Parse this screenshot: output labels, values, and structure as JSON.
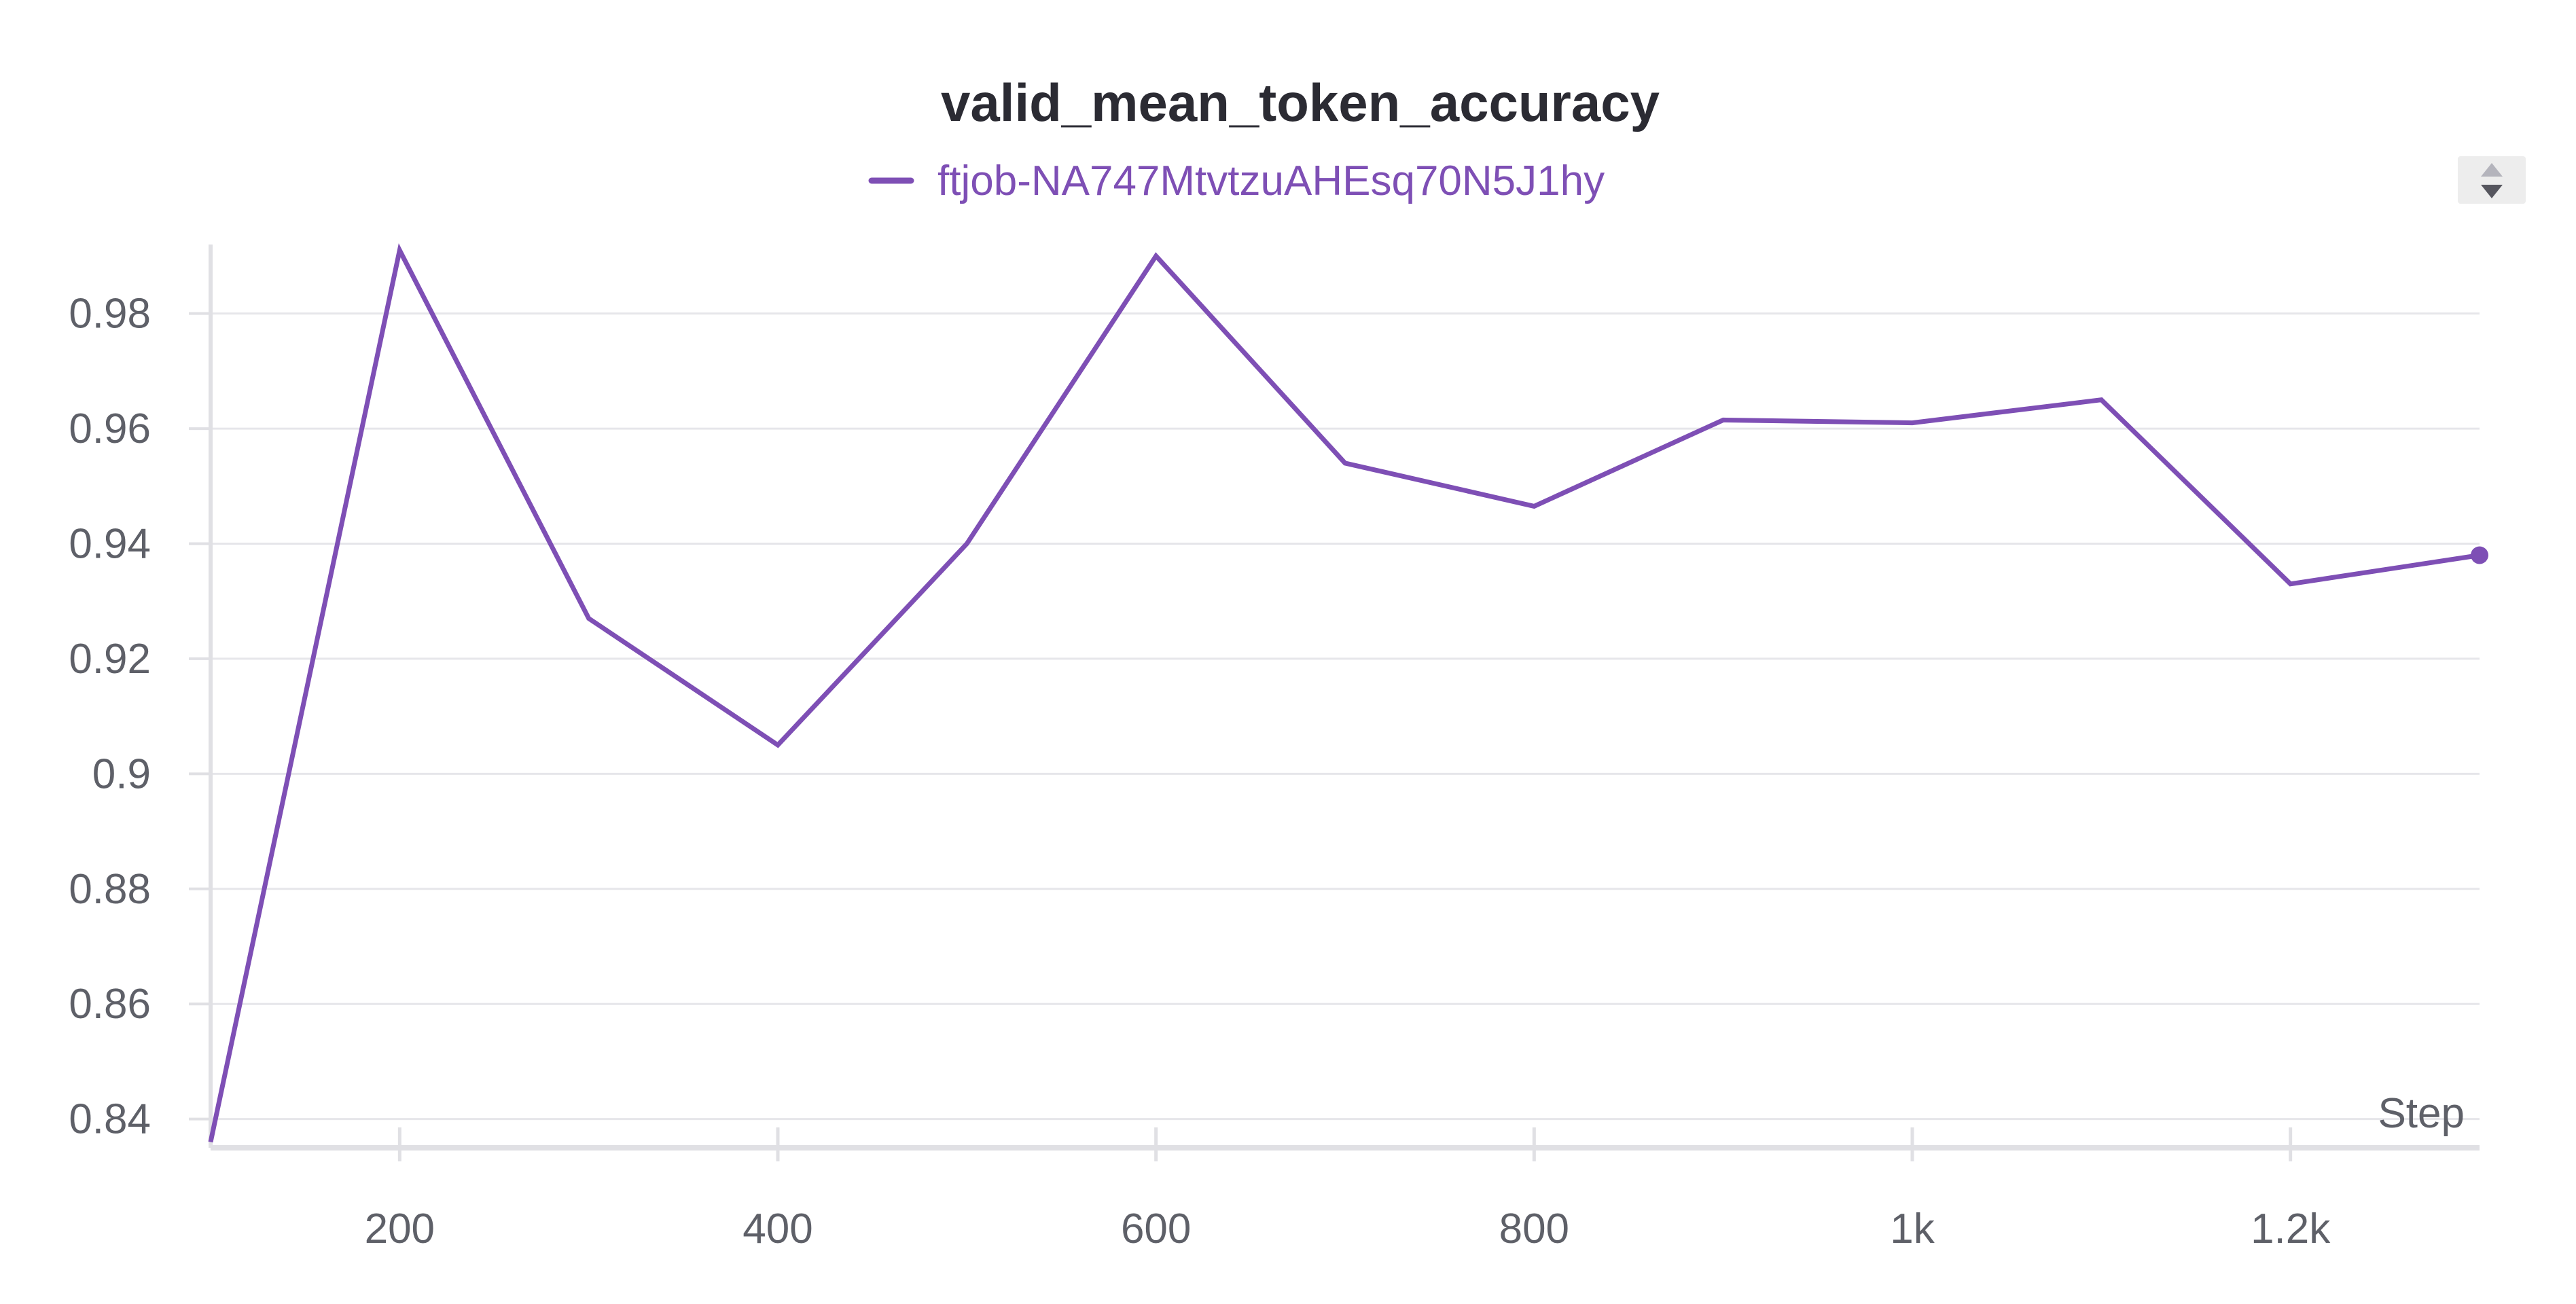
{
  "chart_data": {
    "type": "line",
    "title": "valid_mean_token_accuracy",
    "xlabel": "Step",
    "ylabel": "",
    "xlim": [
      100,
      1300
    ],
    "ylim": [
      0.835,
      0.992
    ],
    "x_ticks": [
      200,
      400,
      600,
      800,
      1000,
      1200
    ],
    "x_tick_labels": [
      "200",
      "400",
      "600",
      "800",
      "1k",
      "1.2k"
    ],
    "y_ticks": [
      0.84,
      0.86,
      0.88,
      0.9,
      0.92,
      0.94,
      0.96,
      0.98
    ],
    "y_tick_labels": [
      "0.84",
      "0.86",
      "0.88",
      "0.9",
      "0.92",
      "0.94",
      "0.96",
      "0.98"
    ],
    "grid": true,
    "legend_position": "top-center",
    "series": [
      {
        "name": "ftjob-NA747MtvtzuAHEsq70N5J1hy",
        "color": "#7e4fb5",
        "x": [
          100,
          200,
          300,
          400,
          500,
          600,
          700,
          800,
          900,
          1000,
          1100,
          1200,
          1300
        ],
        "y": [
          0.836,
          0.991,
          0.927,
          0.905,
          0.94,
          0.99,
          0.954,
          0.9465,
          0.9615,
          0.961,
          0.965,
          0.933,
          0.938
        ]
      }
    ]
  },
  "controls": {
    "sort_icon": "sort-updown-icon"
  }
}
